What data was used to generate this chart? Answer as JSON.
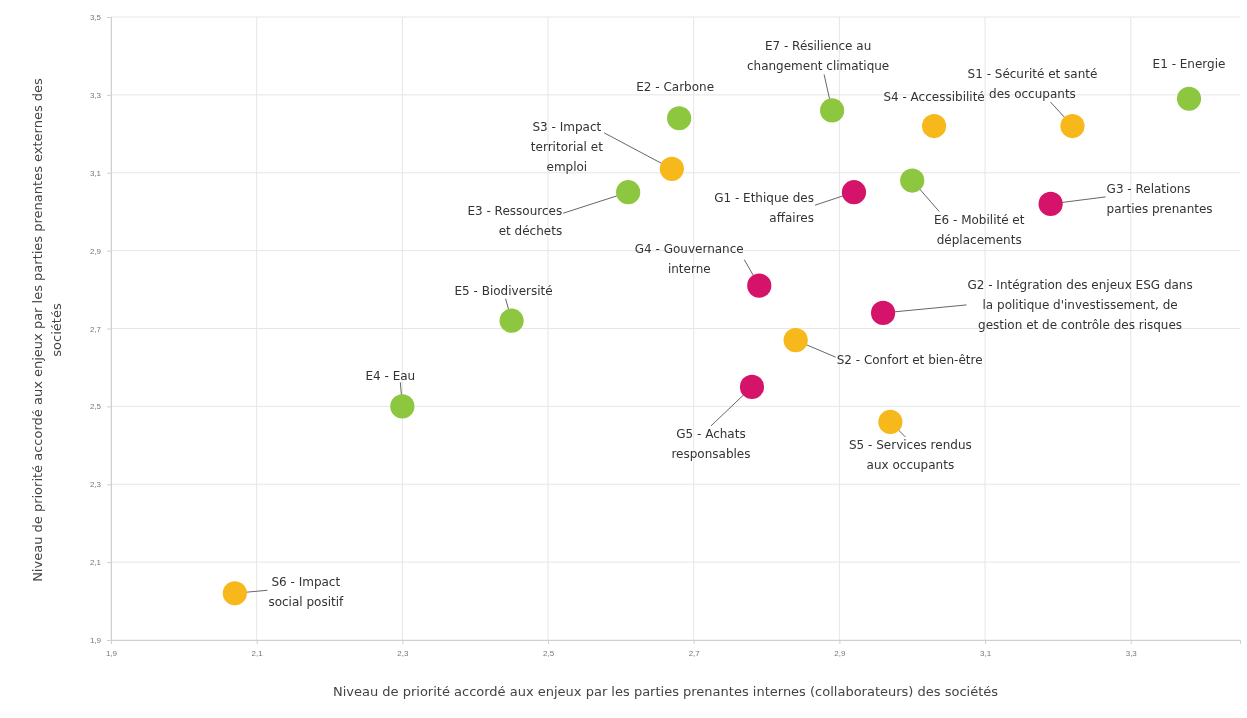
{
  "chart_data": {
    "type": "scatter",
    "xlabel": "Niveau de priorité accordé aux enjeux par les parties prenantes internes (collaborateurs) des sociétés",
    "ylabel": "Niveau de priorité accordé aux enjeux par les parties prenantes externes des sociétés",
    "xlim": [
      1.9,
      3.45
    ],
    "ylim": [
      1.9,
      3.5
    ],
    "xticks": [
      {
        "value": 1.9,
        "label": "1,9"
      },
      {
        "value": 2.1,
        "label": "2,1"
      },
      {
        "value": 2.3,
        "label": "2,3"
      },
      {
        "value": 2.5,
        "label": "2,5"
      },
      {
        "value": 2.7,
        "label": "2,7"
      },
      {
        "value": 2.9,
        "label": "2,9"
      },
      {
        "value": 3.1,
        "label": "3,1"
      },
      {
        "value": 3.3,
        "label": "3,3"
      }
    ],
    "yticks": [
      {
        "value": 1.9,
        "label": "1,9"
      },
      {
        "value": 2.1,
        "label": "2,1"
      },
      {
        "value": 2.3,
        "label": "2,3"
      },
      {
        "value": 2.5,
        "label": "2,5"
      },
      {
        "value": 2.7,
        "label": "2,7"
      },
      {
        "value": 2.9,
        "label": "2,9"
      },
      {
        "value": 3.1,
        "label": "3,1"
      },
      {
        "value": 3.3,
        "label": "3,3"
      },
      {
        "value": 3.5,
        "label": "3,5"
      }
    ],
    "grid": true,
    "marker": "circle",
    "series": [
      {
        "color": "#8dc63f",
        "x": [
          3.38,
          2.68,
          2.61,
          2.3,
          2.45,
          3.0,
          2.89
        ],
        "values": [
          3.29,
          3.24,
          3.05,
          2.5,
          2.72,
          3.08,
          3.26
        ]
      },
      {
        "color": "#f7b81c",
        "x": [
          3.22,
          2.84,
          2.67,
          3.03,
          2.97,
          2.07
        ],
        "values": [
          3.22,
          2.67,
          3.11,
          3.22,
          2.46,
          2.02
        ]
      },
      {
        "color": "#d6136b",
        "x": [
          2.92,
          2.96,
          3.19,
          2.79,
          2.78
        ],
        "values": [
          3.05,
          2.74,
          3.02,
          2.81,
          2.55
        ]
      }
    ],
    "annotations": [
      {
        "text": "E1 - Energie",
        "x": 3.38,
        "y": 3.29
      },
      {
        "text": "E2 - Carbone",
        "x": 2.68,
        "y": 3.24
      },
      {
        "text": "E3 - Ressources et déchets",
        "x": 2.61,
        "y": 3.05
      },
      {
        "text": "E4 - Eau",
        "x": 2.3,
        "y": 2.5
      },
      {
        "text": "E5 - Biodiversité",
        "x": 2.45,
        "y": 2.72
      },
      {
        "text": "E6 - Mobilité et déplacements",
        "x": 3.0,
        "y": 3.08
      },
      {
        "text": "E7 - Résilience au changement climatique",
        "x": 2.89,
        "y": 3.26
      },
      {
        "text": "S1 - Sécurité et santé des occupants",
        "x": 3.22,
        "y": 3.22
      },
      {
        "text": "S2 - Confort et bien-être",
        "x": 2.84,
        "y": 2.67
      },
      {
        "text": "S3 - Impact territorial et emploi",
        "x": 2.67,
        "y": 3.11
      },
      {
        "text": "S4 - Accessibilité",
        "x": 3.03,
        "y": 3.22
      },
      {
        "text": "S5 - Services rendus aux occupants",
        "x": 2.97,
        "y": 2.46
      },
      {
        "text": "S6 - Impact social positif",
        "x": 2.07,
        "y": 2.02
      },
      {
        "text": "G1 - Ethique des affaires",
        "x": 2.92,
        "y": 3.05
      },
      {
        "text": "G2 - Intégration des enjeux ESG dans la politique d'investissement, de gestion et de contrôle des risques",
        "x": 2.96,
        "y": 2.74
      },
      {
        "text": "G3 - Relations parties prenantes",
        "x": 3.19,
        "y": 3.02
      },
      {
        "text": "G4 - Gouvernance interne",
        "x": 2.79,
        "y": 2.81
      },
      {
        "text": "G5 - Achats responsables",
        "x": 2.78,
        "y": 2.55
      }
    ]
  }
}
